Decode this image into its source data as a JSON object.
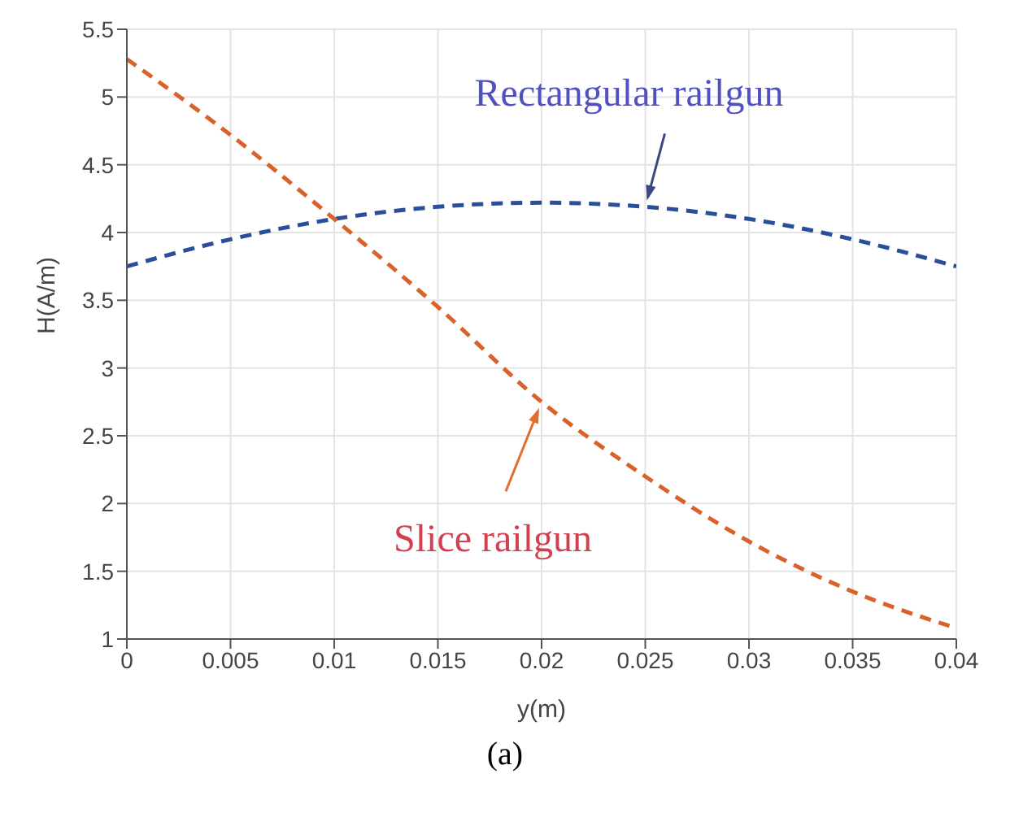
{
  "chart_data": {
    "type": "line",
    "xlabel": "y(m)",
    "ylabel": "H(A/m)",
    "x": [
      0,
      0.005,
      0.01,
      0.015,
      0.02,
      0.025,
      0.03,
      0.035,
      0.04
    ],
    "series": [
      {
        "name": "Rectangular railgun",
        "color": "#2a4f9a",
        "line_style": "dashed",
        "values": [
          3.75,
          3.95,
          4.1,
          4.19,
          4.22,
          4.19,
          4.1,
          3.95,
          3.75
        ]
      },
      {
        "name": "Slice railgun",
        "color": "#d9622b",
        "line_style": "dashed",
        "values": [
          5.28,
          4.72,
          4.1,
          3.45,
          2.75,
          2.2,
          1.72,
          1.35,
          1.08
        ]
      }
    ],
    "xlim": [
      0,
      0.04
    ],
    "xticks": [
      0,
      0.005,
      0.01,
      0.015,
      0.02,
      0.025,
      0.03,
      0.035,
      0.04
    ],
    "ylim": [
      1,
      5.5
    ],
    "yticks": [
      1,
      1.5,
      2,
      2.5,
      3,
      3.5,
      4,
      4.5,
      5,
      5.5
    ],
    "grid": true,
    "marker": "none",
    "annotations": [
      "(a)"
    ]
  }
}
